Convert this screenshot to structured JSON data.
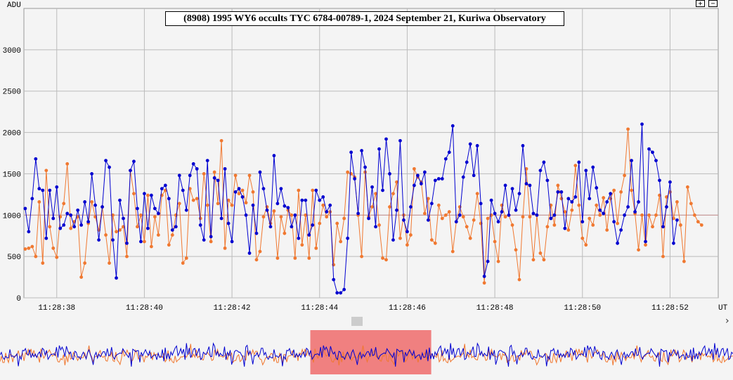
{
  "chart_data": {
    "type": "line",
    "title": "(8908) 1995 WY6 occults TYC 6784-00789-1, 2024 September 21, Kuriwa Observatory",
    "ylabel": "ADU",
    "xlabel": "UT",
    "ylim": [
      0,
      3500
    ],
    "yticks": [
      0,
      500,
      1000,
      1500,
      2000,
      2500,
      3000
    ],
    "xlim_seconds": [
      37.25,
      53.1
    ],
    "xticks": [
      "11:28:38",
      "11:28:40",
      "11:28:42",
      "11:28:44",
      "11:28:46",
      "11:28:48",
      "11:28:50",
      "11:28:52"
    ],
    "x_start": "11:28:37.28",
    "x_step_seconds": 0.08,
    "reference_line": 1000,
    "grid": true,
    "series": [
      {
        "color": "#0000d0",
        "values": [
          1080,
          800,
          1200,
          1680,
          1320,
          1300,
          720,
          1300,
          960,
          1340,
          840,
          880,
          1020,
          1000,
          860,
          1060,
          880,
          1160,
          920,
          1500,
          1120,
          700,
          1100,
          1660,
          1580,
          700,
          240,
          1180,
          960,
          660,
          1540,
          1650,
          1080,
          680,
          1260,
          840,
          1240,
          1080,
          1020,
          1320,
          1360,
          1200,
          820,
          860,
          1480,
          1300,
          1060,
          1480,
          1620,
          1560,
          880,
          700,
          1660,
          740,
          1450,
          1420,
          960,
          1560,
          900,
          680,
          1280,
          1320,
          1220,
          1000,
          540,
          1120,
          780,
          1520,
          1320,
          1060,
          860,
          1720,
          1140,
          1320,
          1110,
          1090,
          860,
          1000,
          720,
          1180,
          1180,
          760,
          880,
          1300,
          1180,
          1220,
          1040,
          1120,
          220,
          60,
          60,
          100,
          720,
          1760,
          1440,
          1020,
          1780,
          1580,
          960,
          1340,
          860,
          1800,
          1300,
          1920,
          1500,
          700,
          1060,
          1900,
          940,
          800,
          1100,
          1360,
          1480,
          1380,
          1520,
          940,
          1140,
          1420,
          1440,
          1440,
          1680,
          1760,
          2080,
          920,
          1000,
          1460,
          1640,
          1860,
          1480,
          1840,
          1140,
          260,
          440,
          1180,
          1020,
          920,
          1040,
          1360,
          1000,
          1320,
          1060,
          1260,
          1840,
          1380,
          1360,
          1020,
          1000,
          1540,
          1640,
          1420,
          960,
          1000,
          1280,
          1280,
          840,
          1200,
          1160,
          1220,
          1640,
          920,
          1540,
          1200,
          1580,
          1330,
          1060,
          1020,
          1160,
          1260,
          920,
          660,
          820,
          1000,
          1100,
          1660,
          1040,
          1160,
          2100,
          680,
          1800,
          1760,
          1660,
          1420,
          860,
          1100,
          1400,
          660,
          940
        ],
        "interpolated_points_note": "values read from plot"
      },
      {
        "color": "#f07830",
        "values": [
          590,
          600,
          620,
          500,
          1160,
          420,
          1540,
          860,
          600,
          490,
          980,
          1140,
          1620,
          840,
          920,
          980,
          250,
          420,
          900,
          1160,
          980,
          820,
          1100,
          760,
          420,
          1000,
          800,
          820,
          860,
          500,
          1540,
          1260,
          860,
          1000,
          680,
          1240,
          620,
          980,
          760,
          1240,
          1300,
          640,
          760,
          1000,
          1140,
          420,
          480,
          1320,
          1180,
          1200,
          960,
          1500,
          1120,
          680,
          1520,
          1140,
          1900,
          600,
          1180,
          1120,
          1480,
          1260,
          1300,
          1150,
          1480,
          1280,
          460,
          560,
          980,
          1100,
          900,
          1050,
          480,
          980,
          780,
          1060,
          1000,
          480,
          1300,
          640,
          1000,
          480,
          1300,
          600,
          900,
          1120,
          980,
          1040,
          400,
          900,
          680,
          960,
          1520,
          1500,
          1460,
          1000,
          500,
          1520,
          980,
          1100,
          1260,
          880,
          480,
          460,
          1100,
          1260,
          1400,
          720,
          1000,
          640,
          760,
          1560,
          1460,
          1400,
          1020,
          1200,
          700,
          660,
          1120,
          960,
          1000,
          1040,
          560,
          920,
          1100,
          980,
          860,
          720,
          940,
          1260,
          900,
          180,
          960,
          1000,
          680,
          440,
          1120,
          980,
          1000,
          880,
          580,
          220,
          980,
          1560,
          980,
          460,
          1000,
          540,
          460,
          860,
          1120,
          880,
          1360,
          1200,
          1040,
          820,
          1060,
          1600,
          1120,
          720,
          640,
          960,
          880,
          1120,
          1000,
          1210,
          820,
          1200,
          1300,
          900,
          1280,
          1480,
          2040,
          1300,
          1020,
          580,
          1000,
          640,
          1000,
          860,
          1000,
          1240,
          500,
          1220,
          1280,
          960,
          1160,
          880,
          440,
          1340,
          1140,
          1000,
          920,
          880
        ]
      }
    ]
  },
  "controls": {
    "zoom_in_label": "+",
    "zoom_out_label": "−",
    "scroll_right_label": "›"
  },
  "overview": {
    "highlight_color": "#f08080",
    "highlight_range_seconds": [
      43.9,
      46.5
    ]
  }
}
